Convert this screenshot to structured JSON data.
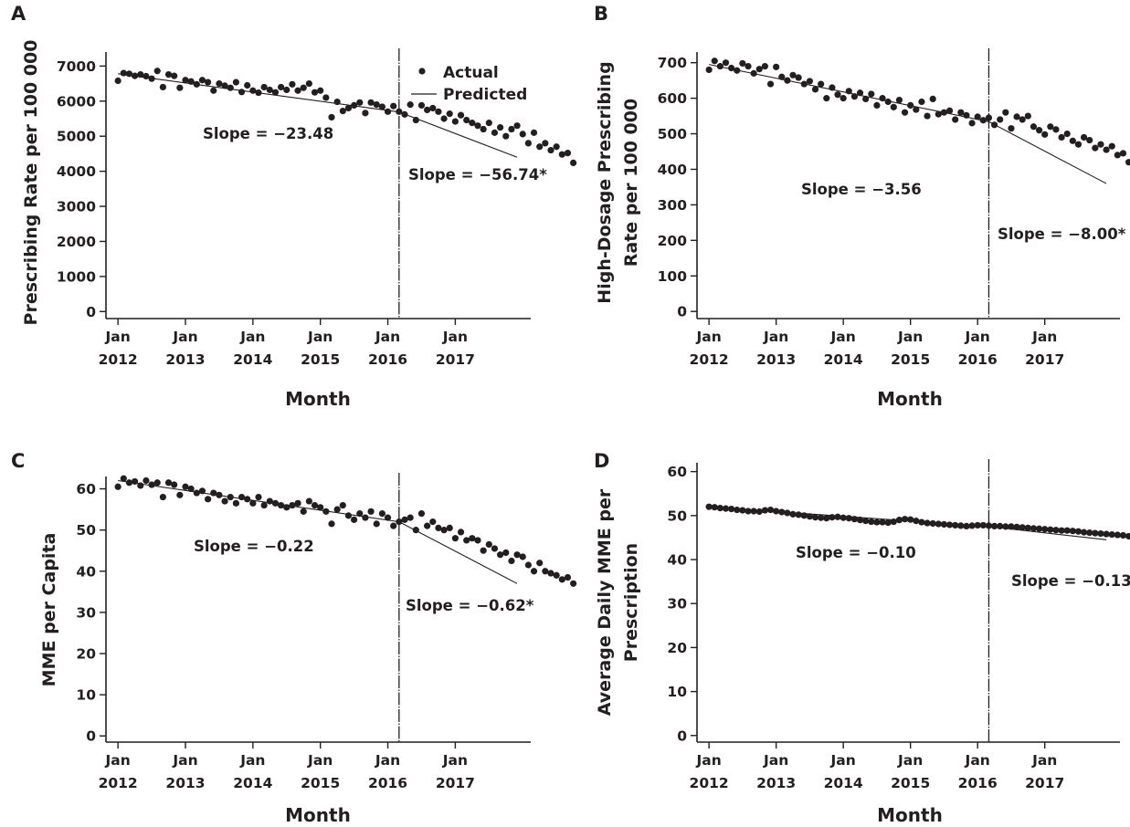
{
  "chart_data": [
    {
      "panel": "A",
      "type": "scatter",
      "ylabel_lines": [
        "Prescribing Rate per 100 000"
      ],
      "xlabel": "Month",
      "x_ticks": [
        [
          "Jan",
          "2012"
        ],
        [
          "Jan",
          "2013"
        ],
        [
          "Jan",
          "2014"
        ],
        [
          "Jan",
          "2015"
        ],
        [
          "Jan",
          "2016"
        ],
        [
          "Jan",
          "2017"
        ]
      ],
      "y_ticks": [
        0,
        1000,
        2000,
        3000,
        4000,
        5000,
        6000,
        7000
      ],
      "ylim": [
        -200,
        7400
      ],
      "xlim": [
        "2011-12",
        "2017-12"
      ],
      "cutoff": "2016-03",
      "legend": {
        "actual": "Actual",
        "predicted": "Predicted",
        "position": "top-right"
      },
      "slopes": [
        "Slope = −23.48",
        "Slope = −56.74*"
      ],
      "predicted": [
        [
          "2012-01",
          6780
        ],
        [
          "2016-03",
          5690
        ],
        [
          "2017-12",
          4400
        ]
      ],
      "series": [
        {
          "name": "Actual",
          "x_start": "2012-01",
          "values": [
            6580,
            6800,
            6780,
            6720,
            6760,
            6710,
            6640,
            6860,
            6400,
            6760,
            6720,
            6380,
            6600,
            6560,
            6480,
            6600,
            6540,
            6300,
            6500,
            6440,
            6380,
            6540,
            6260,
            6450,
            6300,
            6240,
            6400,
            6320,
            6250,
            6400,
            6320,
            6480,
            6300,
            6380,
            6500,
            6250,
            6300,
            6100,
            5540,
            5980,
            5720,
            5800,
            5880,
            5960,
            5660,
            5960,
            5900,
            5840,
            5700,
            5860,
            5700,
            5620,
            5900,
            5460,
            5880,
            5750,
            5800,
            5700,
            5500,
            5640,
            5420,
            5600,
            5460,
            5380,
            5300,
            5200,
            5380,
            5100,
            5250,
            5000,
            5200,
            5300,
            5060,
            4800,
            5100,
            4700,
            4800,
            4600,
            4700,
            4480,
            4520,
            4240
          ]
        }
      ]
    },
    {
      "panel": "B",
      "type": "scatter",
      "ylabel_lines": [
        "High-Dosage Prescribing",
        "Rate per 100 000"
      ],
      "xlabel": "Month",
      "x_ticks": [
        [
          "Jan",
          "2012"
        ],
        [
          "Jan",
          "2013"
        ],
        [
          "Jan",
          "2014"
        ],
        [
          "Jan",
          "2015"
        ],
        [
          "Jan",
          "2016"
        ],
        [
          "Jan",
          "2017"
        ]
      ],
      "y_ticks": [
        0,
        100,
        200,
        300,
        400,
        500,
        600,
        700
      ],
      "ylim": [
        -20,
        730
      ],
      "xlim": [
        "2011-12",
        "2017-12"
      ],
      "cutoff": "2016-03",
      "slopes": [
        "Slope = −3.56",
        "Slope = −8.00*"
      ],
      "predicted": [
        [
          "2012-01",
          695
        ],
        [
          "2016-03",
          534
        ],
        [
          "2017-12",
          360
        ]
      ],
      "series": [
        {
          "name": "Actual",
          "x_start": "2012-01",
          "values": [
            680,
            705,
            690,
            700,
            685,
            678,
            698,
            690,
            670,
            682,
            690,
            640,
            688,
            660,
            650,
            665,
            658,
            640,
            648,
            625,
            640,
            600,
            630,
            610,
            600,
            620,
            605,
            615,
            598,
            612,
            580,
            600,
            590,
            575,
            595,
            560,
            580,
            568,
            590,
            550,
            598,
            555,
            560,
            565,
            540,
            560,
            552,
            530,
            548,
            538,
            545,
            525,
            540,
            560,
            515,
            548,
            540,
            550,
            520,
            510,
            498,
            520,
            512,
            490,
            500,
            480,
            470,
            490,
            482,
            460,
            470,
            455,
            465,
            440,
            445,
            420,
            432,
            410,
            400,
            392,
            380,
            370,
            360
          ]
        }
      ]
    },
    {
      "panel": "C",
      "type": "scatter",
      "ylabel_lines": [
        "MME per Capita"
      ],
      "xlabel": "Month",
      "x_ticks": [
        [
          "Jan",
          "2012"
        ],
        [
          "Jan",
          "2013"
        ],
        [
          "Jan",
          "2014"
        ],
        [
          "Jan",
          "2015"
        ],
        [
          "Jan",
          "2016"
        ],
        [
          "Jan",
          "2017"
        ]
      ],
      "y_ticks": [
        0,
        10,
        20,
        30,
        40,
        50,
        60
      ],
      "ylim": [
        -1.5,
        63
      ],
      "xlim": [
        "2011-12",
        "2017-12"
      ],
      "cutoff": "2016-03",
      "slopes": [
        "Slope = −0.22",
        "Slope = −0.62*"
      ],
      "predicted": [
        [
          "2012-01",
          62
        ],
        [
          "2016-03",
          52
        ],
        [
          "2017-12",
          37
        ]
      ],
      "series": [
        {
          "name": "Actual",
          "x_start": "2012-01",
          "values": [
            60.5,
            62.5,
            61.5,
            61.8,
            60.8,
            62.0,
            61.0,
            61.5,
            58.0,
            61.5,
            61.0,
            58.5,
            60.5,
            60.0,
            59.0,
            59.5,
            57.5,
            59.0,
            58.5,
            57.0,
            58.0,
            56.5,
            58.0,
            57.5,
            56.5,
            58.0,
            56.0,
            57.0,
            56.5,
            56.0,
            55.5,
            56.0,
            56.5,
            54.5,
            57.0,
            56.0,
            55.5,
            54.5,
            51.5,
            55.0,
            56.0,
            53.5,
            52.5,
            54.0,
            53.0,
            54.5,
            51.5,
            54.0,
            53.0,
            51.0,
            52.0,
            52.5,
            53.0,
            50.0,
            54.0,
            51.0,
            52.0,
            50.5,
            50.0,
            50.5,
            48.0,
            49.5,
            47.5,
            48.0,
            47.5,
            45.0,
            46.5,
            45.5,
            44.0,
            44.5,
            42.5,
            44.0,
            43.5,
            41.5,
            40.0,
            42.0,
            40.0,
            39.5,
            39.0,
            38.0,
            38.5,
            37.0
          ]
        }
      ]
    },
    {
      "panel": "D",
      "type": "scatter",
      "ylabel_lines": [
        "Average Daily MME per",
        "Prescription"
      ],
      "xlabel": "Month",
      "x_ticks": [
        [
          "Jan",
          "2012"
        ],
        [
          "Jan",
          "2013"
        ],
        [
          "Jan",
          "2014"
        ],
        [
          "Jan",
          "2015"
        ],
        [
          "Jan",
          "2016"
        ],
        [
          "Jan",
          "2017"
        ]
      ],
      "y_ticks": [
        0,
        10,
        20,
        30,
        40,
        50,
        60
      ],
      "ylim": [
        -1.5,
        62
      ],
      "xlim": [
        "2011-12",
        "2017-12"
      ],
      "cutoff": "2016-03",
      "slopes": [
        "Slope = −0.10",
        "Slope = −0.13"
      ],
      "predicted": [
        [
          "2012-01",
          52
        ],
        [
          "2016-03",
          47.5
        ],
        [
          "2017-12",
          44.5
        ]
      ],
      "series": [
        {
          "name": "Actual",
          "x_start": "2012-01",
          "values": [
            52.0,
            51.9,
            51.7,
            51.6,
            51.5,
            51.3,
            51.2,
            51.0,
            51.0,
            50.9,
            51.2,
            51.3,
            51.0,
            50.8,
            50.6,
            50.3,
            50.2,
            50.0,
            49.8,
            49.6,
            49.5,
            49.4,
            49.6,
            49.7,
            49.5,
            49.4,
            49.2,
            49.0,
            48.8,
            48.6,
            48.5,
            48.5,
            48.4,
            48.6,
            49.0,
            49.2,
            49.1,
            48.8,
            48.5,
            48.3,
            48.2,
            48.1,
            48.0,
            47.9,
            47.8,
            47.7,
            47.6,
            47.7,
            47.8,
            47.8,
            47.7,
            47.6,
            47.6,
            47.5,
            47.5,
            47.4,
            47.3,
            47.2,
            47.1,
            47.0,
            46.9,
            46.8,
            46.7,
            46.6,
            46.6,
            46.5,
            46.4,
            46.2,
            46.1,
            46.0,
            45.9,
            45.8,
            45.7,
            45.6,
            45.5,
            45.3,
            45.1,
            44.8,
            44.5,
            44.4,
            44.6,
            44.8
          ]
        }
      ]
    }
  ]
}
